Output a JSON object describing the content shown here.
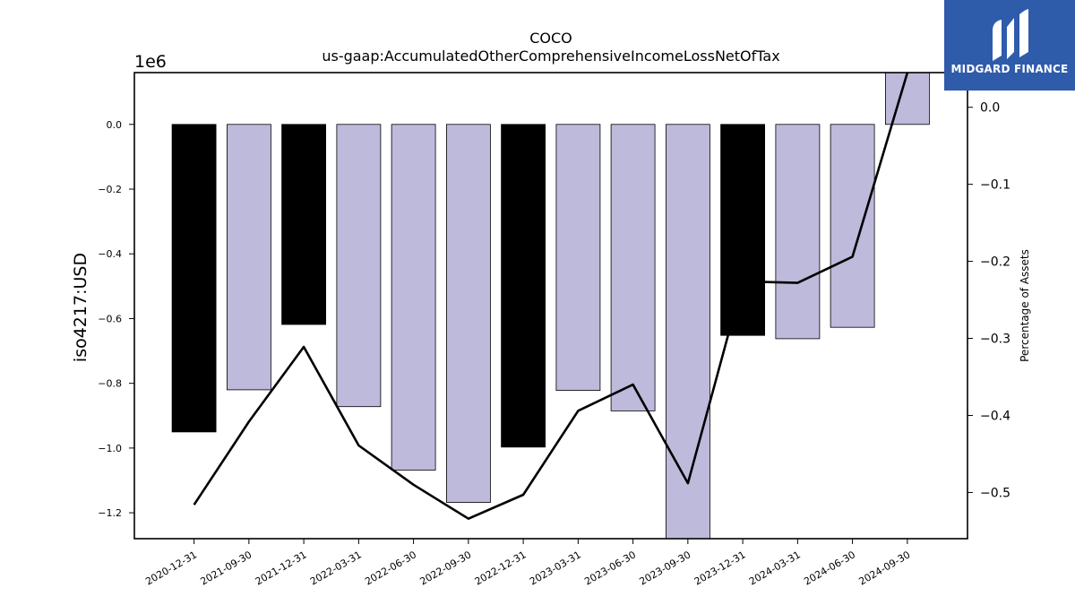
{
  "chart_data": {
    "type": "bar",
    "title": "COCO",
    "subtitle": "us-gaap:AccumulatedOtherComprehensiveIncomeLossNetOfTax",
    "ylabel": "iso4217:USD",
    "y_scale_note": "1e6",
    "y2label": "Percentage of Assets",
    "categories": [
      "2020-12-31",
      "2021-09-30",
      "2021-12-31",
      "2022-03-31",
      "2022-06-30",
      "2022-09-30",
      "2022-12-31",
      "2023-03-31",
      "2023-06-30",
      "2023-09-30",
      "2023-12-31",
      "2024-03-31",
      "2024-06-30",
      "2024-09-30"
    ],
    "series": [
      {
        "type": "bar",
        "values": [
          -950000,
          -820000,
          -618000,
          -872000,
          -1068000,
          -1168000,
          -997000,
          -822000,
          -885000,
          -1288000,
          -652000,
          -662000,
          -627000,
          160000
        ],
        "colors": [
          "#000000",
          "#bebadb",
          "#000000",
          "#bebadb",
          "#bebadb",
          "#bebadb",
          "#000000",
          "#bebadb",
          "#bebadb",
          "#bebadb",
          "#000000",
          "#bebadb",
          "#bebadb",
          "#bebadb"
        ]
      },
      {
        "type": "line",
        "axis": "right",
        "values": [
          -0.516,
          -0.408,
          -0.311,
          -0.439,
          -0.49,
          -0.534,
          -0.503,
          -0.394,
          -0.36,
          -0.488,
          -0.226,
          -0.228,
          -0.194,
          0.045
        ],
        "color": "#000000"
      }
    ],
    "ylim": [
      -1280000,
      160000
    ],
    "y_ticks": [
      0.0,
      -0.2,
      -0.4,
      -0.6,
      -0.8,
      -1.0,
      -1.2
    ],
    "y_tick_labels": [
      "0.0",
      "−0.2",
      "−0.4",
      "−0.6",
      "−0.8",
      "−1.0",
      "−1.2"
    ],
    "y2lim": [
      -0.56,
      0.045
    ],
    "y2_ticks": [
      0.0,
      -0.1,
      -0.2,
      -0.3,
      -0.4,
      -0.5
    ],
    "y2_tick_labels": [
      "0.0",
      "−0.1",
      "−0.2",
      "−0.3",
      "−0.4",
      "−0.5"
    ],
    "grid": false
  },
  "logo": {
    "text": "MIDGARD FINANCE",
    "background": "#2f5bab"
  }
}
